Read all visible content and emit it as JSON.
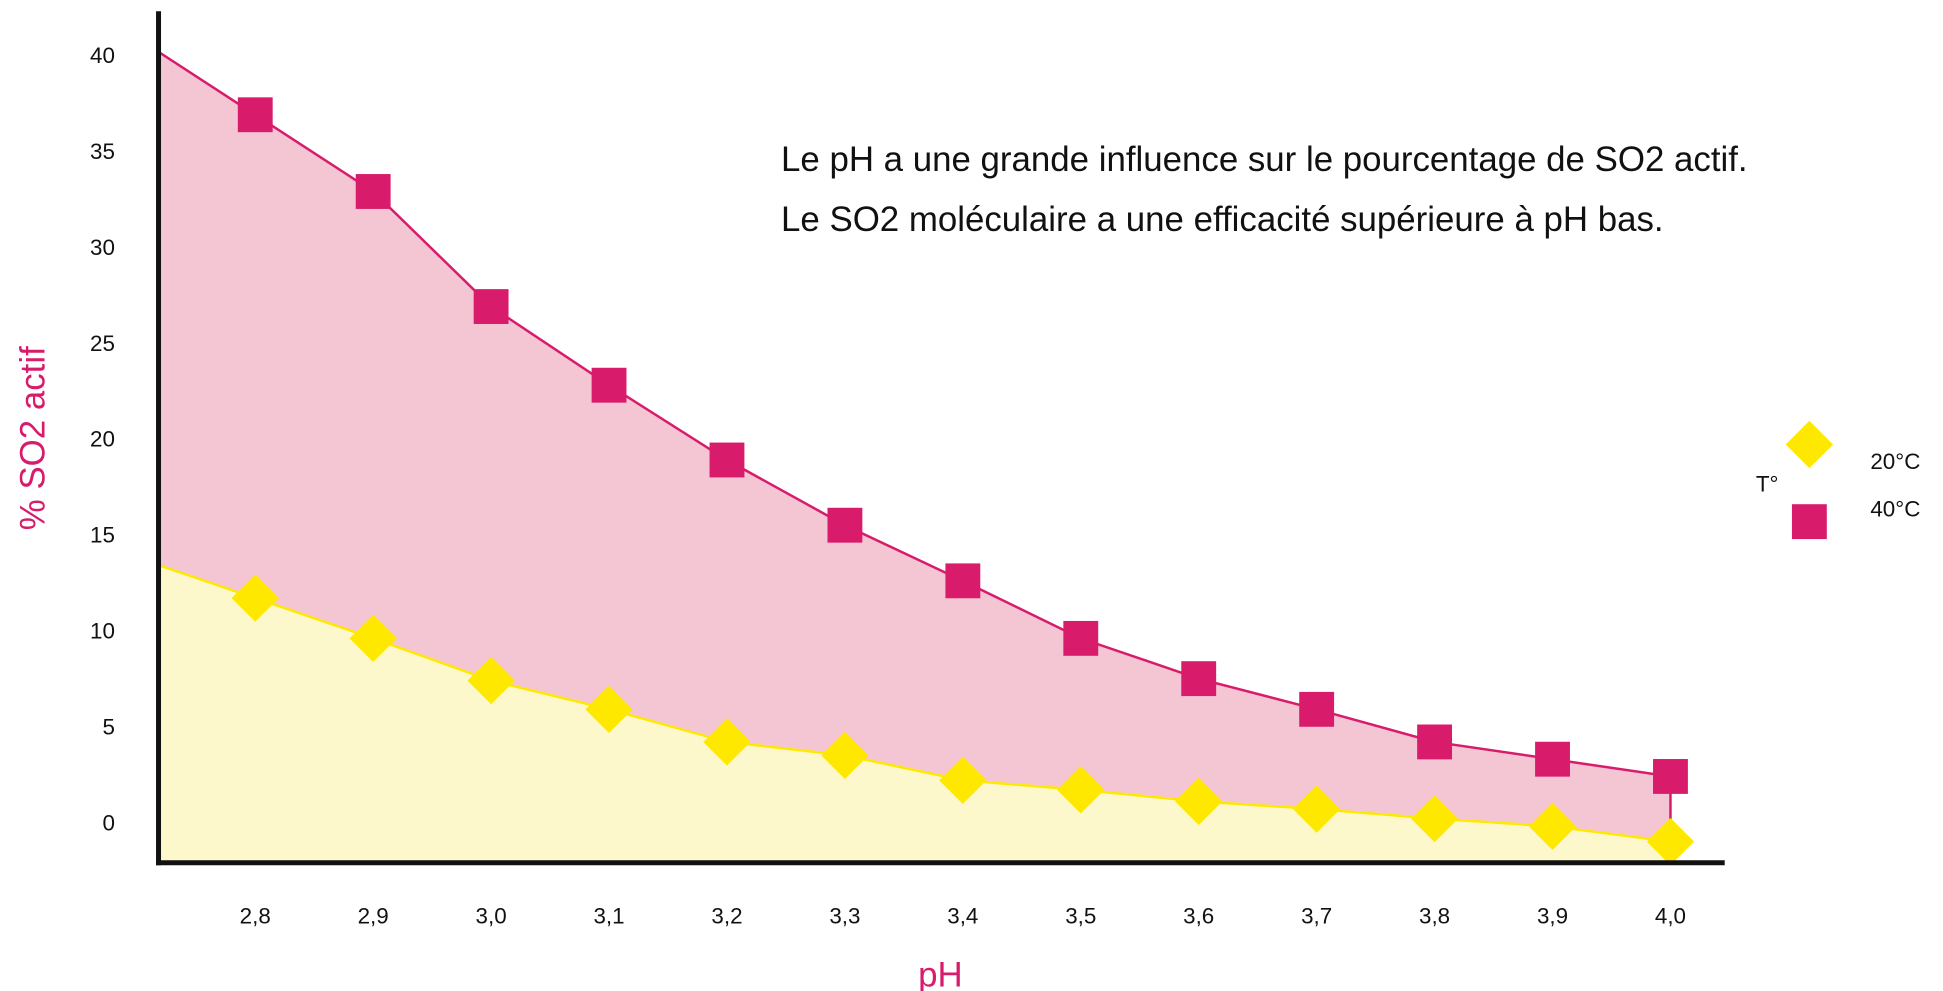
{
  "chart_data": {
    "type": "area",
    "annotation": [
      "Le pH a une grande influence sur le pourcentage de SO2 actif.",
      "Le SO2 moléculaire a une efficacité supérieure à pH bas."
    ],
    "x_label": "pH",
    "y_label": "% SO2 actif",
    "legend_title": "T°",
    "legend_position": "right",
    "x": [
      2.8,
      2.9,
      3.0,
      3.1,
      3.2,
      3.3,
      3.4,
      3.5,
      3.6,
      3.7,
      3.8,
      3.9,
      4.0
    ],
    "series": [
      {
        "name": "20°C",
        "color": "#ffe800",
        "fill": "#fdf8cc",
        "marker": "diamond",
        "values": [
          11.8,
          9.7,
          7.5,
          6.0,
          4.3,
          3.6,
          2.3,
          1.8,
          1.2,
          0.8,
          0.3,
          -0.1,
          -0.9
        ]
      },
      {
        "name": "40°C",
        "color": "#d81b6a",
        "fill": "#f4c6d4",
        "marker": "square",
        "values": [
          37.0,
          33.0,
          27.0,
          22.9,
          19.0,
          15.6,
          12.7,
          9.7,
          7.6,
          6.0,
          4.3,
          3.4,
          2.5
        ]
      }
    ],
    "xlim": [
      2.718,
      4.046
    ],
    "xticks": [
      {
        "value": 2.8,
        "label": "2,8"
      },
      {
        "value": 2.9,
        "label": "2,9"
      },
      {
        "value": 3.0,
        "label": "3,0"
      },
      {
        "value": 3.1,
        "label": "3,1"
      },
      {
        "value": 3.2,
        "label": "3,2"
      },
      {
        "value": 3.3,
        "label": "3,3"
      },
      {
        "value": 3.4,
        "label": "3,4"
      },
      {
        "value": 3.5,
        "label": "3,5"
      },
      {
        "value": 3.6,
        "label": "3,6"
      },
      {
        "value": 3.7,
        "label": "3,7"
      },
      {
        "value": 3.8,
        "label": "3,8"
      },
      {
        "value": 3.9,
        "label": "3,9"
      },
      {
        "value": 4.0,
        "label": "4,0"
      }
    ],
    "ylim": [
      -2,
      42.4
    ],
    "yticks": [
      0,
      5,
      10,
      15,
      20,
      25,
      30,
      35,
      40
    ],
    "grid": false
  }
}
